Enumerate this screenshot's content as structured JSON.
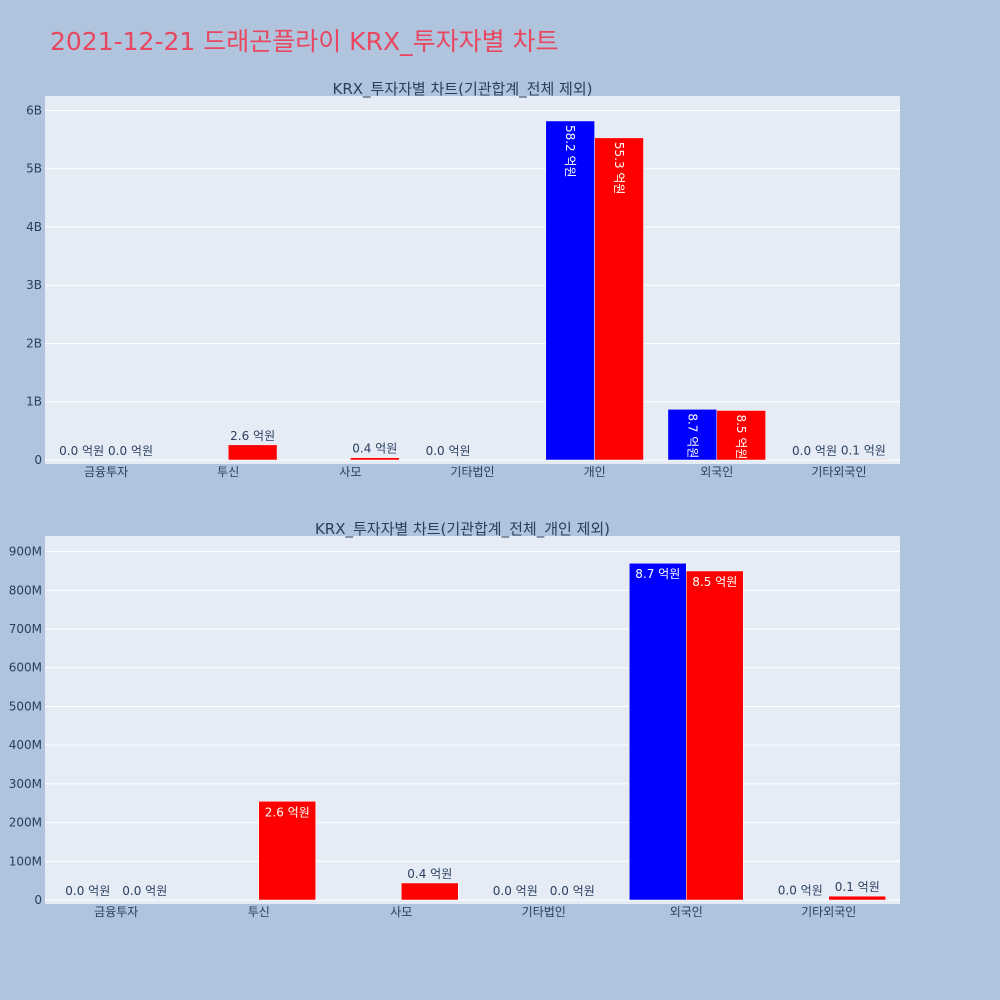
{
  "page_title": "2021-12-21 드래곤플라이 KRX_투자자별 차트",
  "colors": {
    "background": "#b0c4de",
    "plot_bg": "#e5ecf6",
    "title": "#e8475f",
    "series_buy": "#0000ff",
    "series_sell": "#ff0000"
  },
  "chart_data": [
    {
      "type": "bar",
      "title": "KRX_투자자별 차트(기관합계_전체 제외)",
      "categories": [
        "금융투자",
        "투신",
        "사모",
        "기타법인",
        "개인",
        "외국인",
        "기타외국인"
      ],
      "series": [
        {
          "color": "#0000ff",
          "values": [
            0,
            0,
            0,
            0,
            5820000000,
            870000000,
            0
          ]
        },
        {
          "color": "#ff0000",
          "values": [
            0,
            260000000,
            40000000,
            0,
            5530000000,
            850000000,
            10000000
          ]
        }
      ],
      "labels": [
        [
          "0.0 억원",
          null,
          null,
          "0.0 억원",
          "58.2 억원",
          "8.7 억원",
          "0.0 억원"
        ],
        [
          "0.0 억원",
          "2.6 억원",
          "0.4 억원",
          null,
          "55.3 억원",
          "8.5 억원",
          "0.1 억원"
        ]
      ],
      "yticks": [
        0,
        1000000000,
        2000000000,
        3000000000,
        4000000000,
        5000000000,
        6000000000
      ],
      "yticklabels": [
        "0",
        "1B",
        "2B",
        "3B",
        "4B",
        "5B",
        "6B"
      ],
      "ylim": [
        0,
        6180000000
      ],
      "xlabel": "",
      "ylabel": "",
      "grid": true
    },
    {
      "type": "bar",
      "title": "KRX_투자자별 차트(기관합계_전체_개인 제외)",
      "categories": [
        "금융투자",
        "투신",
        "사모",
        "기타법인",
        "외국인",
        "기타외국인"
      ],
      "series": [
        {
          "color": "#0000ff",
          "values": [
            0,
            0,
            0,
            0,
            870000000,
            1000000
          ]
        },
        {
          "color": "#ff0000",
          "values": [
            0,
            255000000,
            44000000,
            0,
            850000000,
            10000000
          ]
        }
      ],
      "labels": [
        [
          "0.0 억원",
          null,
          null,
          "0.0 억원",
          "8.7 억원",
          "0.0 억원"
        ],
        [
          "0.0 억원",
          "2.6 억원",
          "0.4 억원",
          "0.0 억원",
          "8.5 억원",
          "0.1 억원"
        ]
      ],
      "yticks": [
        0,
        100000000,
        200000000,
        300000000,
        400000000,
        500000000,
        600000000,
        700000000,
        800000000,
        900000000
      ],
      "yticklabels": [
        "0",
        "100M",
        "200M",
        "300M",
        "400M",
        "500M",
        "600M",
        "700M",
        "800M",
        "900M"
      ],
      "ylim": [
        0,
        930000000
      ],
      "xlabel": "",
      "ylabel": "",
      "grid": true
    }
  ]
}
